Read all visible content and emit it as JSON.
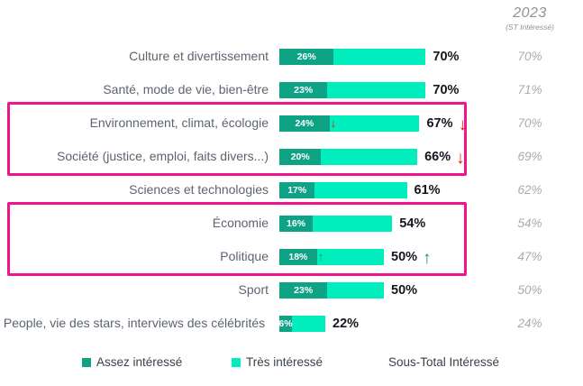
{
  "header": {
    "year": "2023",
    "subtitle": "(ST Intéressé)"
  },
  "legend": {
    "assez": "Assez intéressé",
    "tres": "Très intéressé",
    "sous_total": "Sous-Total Intéressé"
  },
  "colors": {
    "assez_interesse": "#0FA385",
    "tres_interesse": "#00EDBE",
    "highlight_box": "#F0158A",
    "trend_down": "#E51A0E",
    "trend_up": "#0B9E4D"
  },
  "chart_data": {
    "type": "bar",
    "orientation": "horizontal",
    "unit": "%",
    "title": "",
    "legend_entries": [
      "Assez intéressé",
      "Très intéressé",
      "Sous-Total Intéressé"
    ],
    "legend_position": "bottom",
    "grid": false,
    "x_range": [
      0,
      70
    ],
    "rows": [
      {
        "category": "Culture et divertissement",
        "assez_interesse": 26,
        "sous_total": 70,
        "st_2023": "70%",
        "bar_trend": "",
        "total_trend": "",
        "highlight": false
      },
      {
        "category": "Santé, mode de vie, bien-être",
        "assez_interesse": 23,
        "sous_total": 70,
        "st_2023": "71%",
        "bar_trend": "",
        "total_trend": "",
        "highlight": false
      },
      {
        "category": "Environnement, climat, écologie",
        "assez_interesse": 24,
        "sous_total": 67,
        "st_2023": "70%",
        "bar_trend": "down",
        "total_trend": "down",
        "highlight": true
      },
      {
        "category": "Société (justice, emploi, faits divers...)",
        "assez_interesse": 20,
        "sous_total": 66,
        "st_2023": "69%",
        "bar_trend": "",
        "total_trend": "down",
        "highlight": true
      },
      {
        "category": "Sciences et technologies",
        "assez_interesse": 17,
        "sous_total": 61,
        "st_2023": "62%",
        "bar_trend": "",
        "total_trend": "",
        "highlight": false
      },
      {
        "category": "Économie",
        "assez_interesse": 16,
        "sous_total": 54,
        "st_2023": "54%",
        "bar_trend": "",
        "total_trend": "",
        "highlight": true
      },
      {
        "category": "Politique",
        "assez_interesse": 18,
        "sous_total": 50,
        "st_2023": "47%",
        "bar_trend": "up",
        "total_trend": "up",
        "highlight": true
      },
      {
        "category": "Sport",
        "assez_interesse": 23,
        "sous_total": 50,
        "st_2023": "50%",
        "bar_trend": "",
        "total_trend": "",
        "highlight": false
      },
      {
        "category": "People, vie des stars, interviews des célébrités",
        "assez_interesse": 6,
        "sous_total": 22,
        "st_2023": "24%",
        "bar_trend": "",
        "total_trend": "",
        "highlight": false
      }
    ]
  }
}
